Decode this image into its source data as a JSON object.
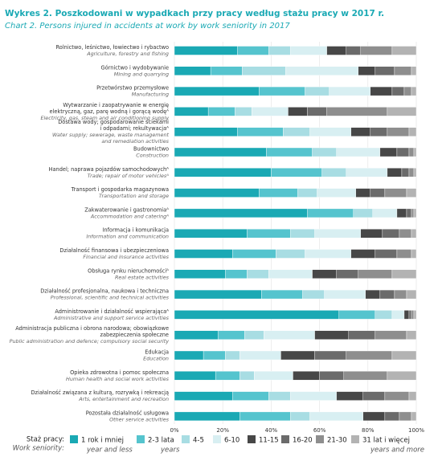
{
  "chart_data": {
    "type": "stacked-bar-horizontal",
    "title": "Wykres 2. Poszkodowani w wypadkach przy pracy według stażu pracy w 2017 r.",
    "subtitle": "Chart 2. Persons injured in accidents at work by work seniority in 2017",
    "categories": [
      [
        "Rolnictwo, leśnictwo, łowiectwo i rybactwo"
      ],
      [
        "Górnictwo i wydobywanie"
      ],
      [
        "Przetwórstwo przemysłowe"
      ],
      [
        "Wytwarzanie i zaopatrywanie w energię",
        "elektryczną, gaz, parę wodną i gorącą wodęᴬ"
      ],
      [
        "Dostawa wody; gospodarowanie ściekami",
        "i odpadami; rekultywacjaᴬ"
      ],
      [
        "Budownictwo"
      ],
      [
        "Handel; naprawa pojazdów samochodowychᴬ"
      ],
      [
        "Transport i gospodarka magazynowa"
      ],
      [
        "Zakwaterowanie i gastronomiaᴬ"
      ],
      [
        "Informacja i komunikacja"
      ],
      [
        "Działalność finansowa i ubezpieczeniowa"
      ],
      [
        "Obsługa rynku nieruchomościᴬ"
      ],
      [
        "Działalność profesjonalna, naukowa i techniczna"
      ],
      [
        "Administrowanie i działalność wspierającaᴬ"
      ],
      [
        "Administracja publiczna i obrona narodowa; obowiązkowe",
        "zabezpieczenia społeczne"
      ],
      [
        "Edukacja"
      ],
      [
        "Opieka zdrowotna i pomoc społeczna"
      ],
      [
        "Działalność związana z kulturą, rozrywką i rekreacją"
      ],
      [
        "Pozostała działalność usługowa"
      ]
    ],
    "categories_en": [
      [
        "Agriculture, forestry and fishing"
      ],
      [
        "Mining and quarrying"
      ],
      [
        "Manufacturing"
      ],
      [
        "Electricity, gas, steam and air conditioning supply"
      ],
      [
        "Water supply; sewerage, waste management",
        "and remediation activities"
      ],
      [
        "Construction"
      ],
      [
        "Trade; repair of motor vehiclesᴬ"
      ],
      [
        "Transportation and storage"
      ],
      [
        "Accommodation and cateringᴬ"
      ],
      [
        "Information and communication"
      ],
      [
        "Financial and insurance activities"
      ],
      [
        "Real estate activities"
      ],
      [
        "Professional, scientific and technical activities"
      ],
      [
        "Administrative and support service activities"
      ],
      [
        "Public administration and defence; compulsory social security"
      ],
      [
        "Education"
      ],
      [
        "Human health and social work activities"
      ],
      [
        "Arts, entertainment and recreation"
      ],
      [
        "Other service activities"
      ]
    ],
    "series": [
      {
        "name": "1 rok i mniej",
        "name_en": "year and less",
        "color": "#1aa9b4",
        "values": [
          26,
          15,
          35,
          14,
          26,
          38,
          40,
          35,
          55,
          30,
          24,
          21,
          36,
          68,
          18,
          12,
          17,
          24,
          27
        ]
      },
      {
        "name": "2-3 lata",
        "name_en": "years",
        "color": "#55c4ce",
        "values": [
          13,
          13,
          19,
          11,
          19,
          19,
          21,
          16,
          19,
          18,
          18,
          9,
          17,
          15,
          11,
          9,
          10,
          15,
          21
        ]
      },
      {
        "name": "4-5",
        "color": "#a8dde3",
        "values": [
          9,
          18,
          10,
          7,
          11,
          10,
          10,
          8,
          8,
          10,
          12,
          9,
          9,
          7,
          8,
          6,
          6,
          9,
          8
        ]
      },
      {
        "name": "6-10",
        "color": "#d8eff2",
        "values": [
          15,
          30,
          17,
          15,
          17,
          18,
          17,
          16,
          10,
          19,
          19,
          18,
          17,
          5,
          21,
          17,
          16,
          19,
          22
        ]
      },
      {
        "name": "11-15",
        "color": "#474747",
        "values": [
          8,
          7,
          9,
          8,
          8,
          7,
          6,
          6,
          4,
          9,
          10,
          10,
          6,
          2,
          14,
          14,
          11,
          11,
          9
        ]
      },
      {
        "name": "16-20",
        "color": "#6b6b6b",
        "values": [
          6,
          8,
          5,
          8,
          7,
          5,
          3,
          6,
          2,
          7,
          9,
          9,
          6,
          1,
          11,
          13,
          10,
          9,
          6
        ]
      },
      {
        "name": "21-30",
        "color": "#8e8e8e",
        "values": [
          13,
          7,
          3,
          25,
          9,
          2,
          2,
          9,
          1,
          5,
          6,
          14,
          5,
          1,
          13,
          19,
          18,
          10,
          5
        ]
      },
      {
        "name": "31 lat i więcej",
        "name_en": "years and more",
        "color": "#b3b3b3",
        "values": [
          10,
          2,
          2,
          12,
          3,
          1,
          1,
          4,
          1,
          2,
          2,
          10,
          4,
          1,
          4,
          10,
          12,
          3,
          2
        ]
      }
    ],
    "xlim": [
      0,
      100
    ],
    "xticks": [
      {
        "value": 0,
        "label": "0%"
      },
      {
        "value": 20,
        "label": "20%"
      },
      {
        "value": 40,
        "label": "40%"
      },
      {
        "value": 60,
        "label": "60%"
      },
      {
        "value": 80,
        "label": "80%"
      },
      {
        "value": 100,
        "label": "100%"
      }
    ],
    "grid": true,
    "legend_title": "Staż pracy:",
    "legend_title_en": "Work seniority:"
  }
}
